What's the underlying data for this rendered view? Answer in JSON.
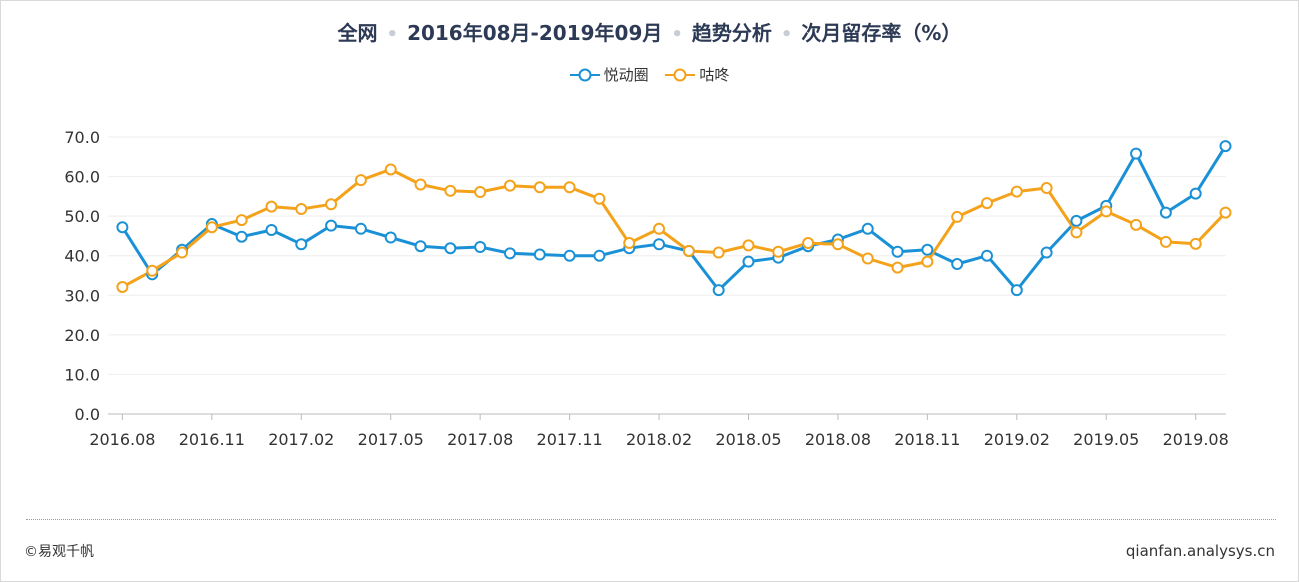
{
  "header": {
    "parts": [
      "全网",
      "2016年08月-2019年09月",
      "趋势分析",
      "次月留存率（%）"
    ],
    "separator": "•"
  },
  "footer": {
    "copyright": "©易观千帆",
    "site": "qianfan.analysys.cn"
  },
  "colors": {
    "series1": "#1a91d6",
    "series2": "#f5a21b",
    "grid": "#eeeeee",
    "axis": "#bbbbbb",
    "text": "#333333"
  },
  "chart_data": {
    "type": "line",
    "ylim": [
      0,
      70
    ],
    "yticks": [
      "0.0",
      "10.0",
      "20.0",
      "30.0",
      "40.0",
      "50.0",
      "60.0",
      "70.0"
    ],
    "x": [
      "2016.08",
      "2016.09",
      "2016.10",
      "2016.11",
      "2016.12",
      "2017.01",
      "2017.02",
      "2017.03",
      "2017.04",
      "2017.05",
      "2017.06",
      "2017.07",
      "2017.08",
      "2017.09",
      "2017.10",
      "2017.11",
      "2017.12",
      "2018.01",
      "2018.02",
      "2018.03",
      "2018.04",
      "2018.05",
      "2018.06",
      "2018.07",
      "2018.08",
      "2018.09",
      "2018.10",
      "2018.11",
      "2018.12",
      "2019.01",
      "2019.02",
      "2019.03",
      "2019.04",
      "2019.05",
      "2019.06",
      "2019.07",
      "2019.08",
      "2019.09"
    ],
    "xtick_labels": [
      "2016.08",
      "2016.11",
      "2017.02",
      "2017.05",
      "2017.08",
      "2017.11",
      "2018.02",
      "2018.05",
      "2018.08",
      "2018.11",
      "2019.02",
      "2019.05",
      "2019.08"
    ],
    "legend_position": "top-center",
    "series": [
      {
        "name": "悦动圈",
        "color": "#1a91d6",
        "values": [
          47.2,
          35.3,
          41.5,
          48.0,
          44.8,
          46.5,
          42.9,
          47.6,
          46.8,
          44.6,
          42.4,
          41.9,
          42.2,
          40.6,
          40.3,
          40.0,
          40.0,
          41.9,
          42.9,
          41.2,
          31.3,
          38.5,
          39.5,
          42.4,
          44.1,
          46.8,
          41.0,
          41.5,
          37.9,
          40.0,
          31.3,
          40.8,
          48.8,
          52.6,
          65.8,
          50.9,
          55.7,
          67.7
        ]
      },
      {
        "name": "咕咚",
        "color": "#f5a21b",
        "values": [
          32.1,
          36.2,
          40.8,
          47.2,
          49.0,
          52.4,
          51.8,
          53.0,
          59.1,
          61.8,
          58.0,
          56.4,
          56.1,
          57.7,
          57.3,
          57.3,
          54.4,
          43.2,
          46.8,
          41.2,
          40.8,
          42.6,
          41.0,
          43.2,
          42.9,
          39.3,
          37.0,
          38.5,
          49.8,
          53.3,
          56.2,
          57.1,
          45.9,
          51.2,
          47.8,
          43.5,
          43.0,
          50.9
        ]
      }
    ]
  }
}
